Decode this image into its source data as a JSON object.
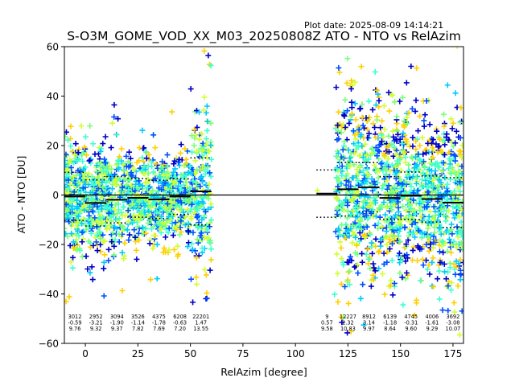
{
  "plot_date": "Plot date: 2025-08-09 14:14:21",
  "chart_data": {
    "type": "scatter",
    "title": "S-O3M_GOME_VOD_XX_M03_20250808Z ATO - NTO vs RelAzim",
    "xlabel": "RelAzim [degree]",
    "ylabel": "ATO - NTO [DU]",
    "xlim": [
      -10,
      180
    ],
    "ylim": [
      -60,
      60
    ],
    "xticks": [
      0,
      25,
      50,
      75,
      100,
      125,
      150,
      175
    ],
    "yticks": [
      -60,
      -40,
      -20,
      0,
      20,
      40,
      60
    ],
    "xtick_labels": [
      "0",
      "25",
      "50",
      "75",
      "100",
      "125",
      "150",
      "175"
    ],
    "ytick_labels": [
      "−60",
      "−40",
      "−20",
      "0",
      "20",
      "40",
      "60"
    ],
    "colormap": [
      "#0000c8",
      "#0050ff",
      "#00c8ff",
      "#3cffd0",
      "#78ff78",
      "#d0ff30",
      "#ffd000"
    ],
    "zero_line": 0,
    "bin_width": 10,
    "bins": [
      {
        "center": -5,
        "count": "3012",
        "mean": "-0.59",
        "std": "9.76"
      },
      {
        "center": 5,
        "count": "2952",
        "mean": "-3.21",
        "std": "9.32"
      },
      {
        "center": 15,
        "count": "3094",
        "mean": "-1.90",
        "std": "9.37"
      },
      {
        "center": 25,
        "count": "3526",
        "mean": "-1.14",
        "std": "7.82"
      },
      {
        "center": 35,
        "count": "4375",
        "mean": "-1.78",
        "std": "7.69"
      },
      {
        "center": 45,
        "count": "6208",
        "mean": "-0.63",
        "std": "7.20"
      },
      {
        "center": 55,
        "count": "22201",
        "mean": "1.47",
        "std": "13.55"
      },
      {
        "center": 115,
        "count": "9",
        "mean": "0.57",
        "std": "9.58"
      },
      {
        "center": 125,
        "count": "12227",
        "mean": "2.32",
        "std": "10.83"
      },
      {
        "center": 135,
        "count": "8912",
        "mean": "3.14",
        "std": "9.97"
      },
      {
        "center": 145,
        "count": "6139",
        "mean": "-1.18",
        "std": "8.64"
      },
      {
        "center": 155,
        "count": "4745",
        "mean": "-0.31",
        "std": "9.60"
      },
      {
        "center": 165,
        "count": "4006",
        "mean": "-1.61",
        "std": "9.29"
      },
      {
        "center": 175,
        "count": "3692",
        "mean": "-3.08",
        "std": "10.07"
      }
    ]
  }
}
